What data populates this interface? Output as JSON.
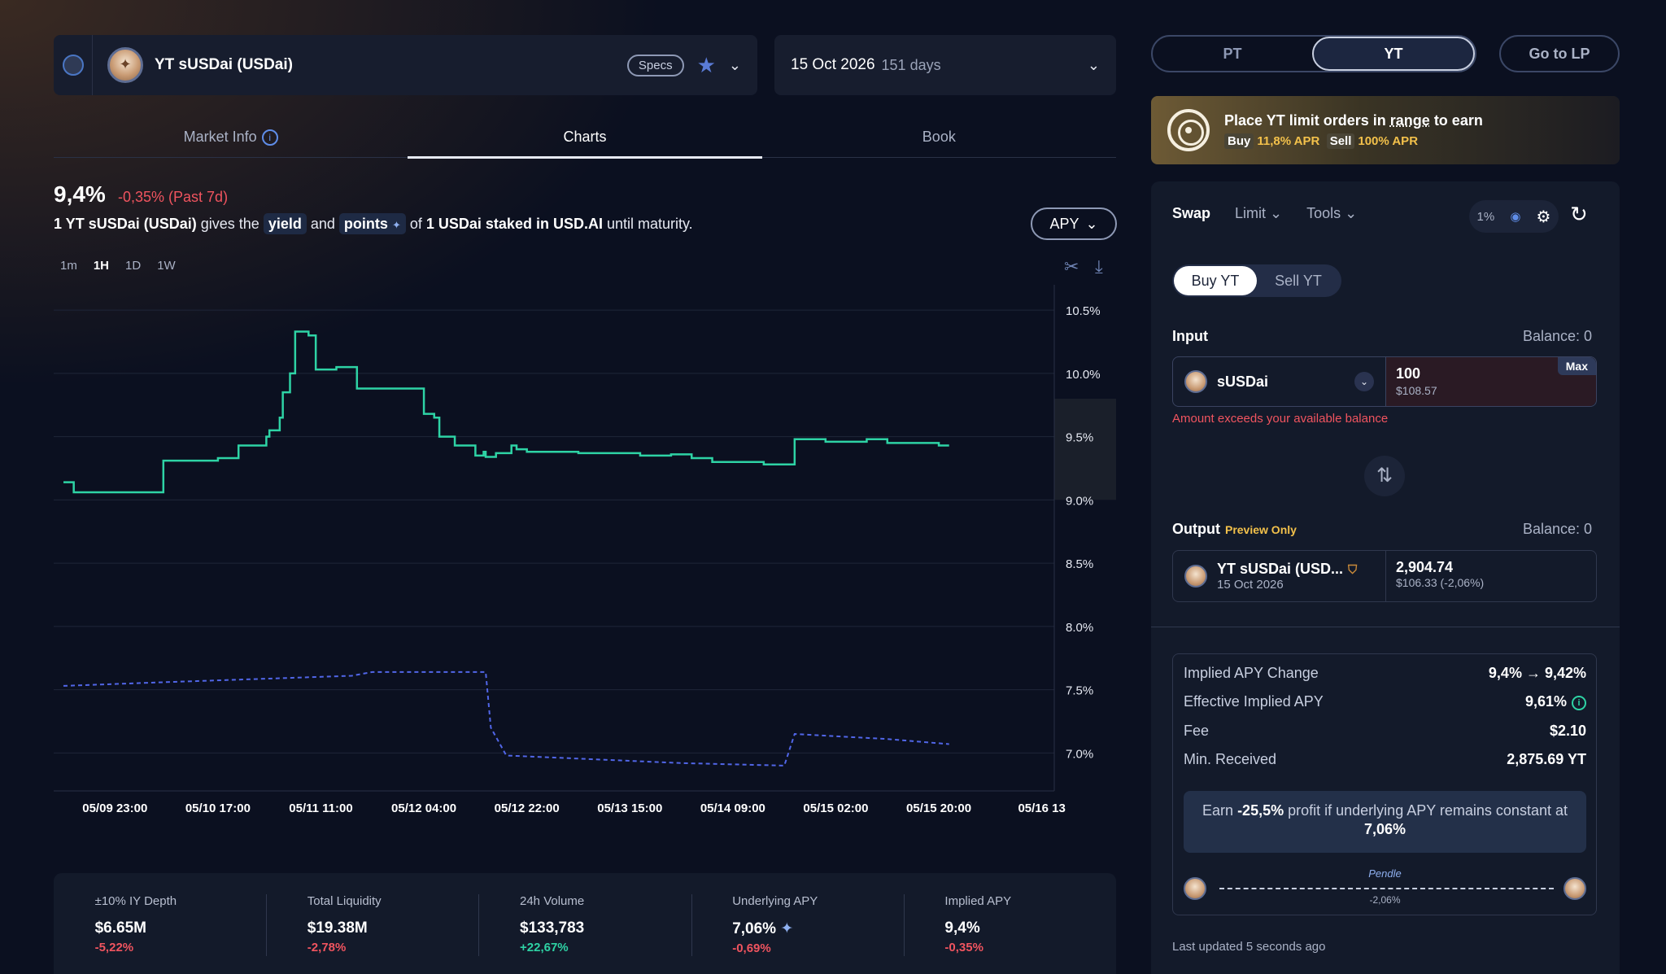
{
  "market": {
    "name": "YT sUSDai (USDai)",
    "specs_label": "Specs",
    "maturity_date": "15 Oct 2026",
    "maturity_days": "151 days"
  },
  "tabs": [
    {
      "label": "Market Info"
    },
    {
      "label": "Charts"
    },
    {
      "label": "Book"
    }
  ],
  "chart_header": {
    "apy": "9,4%",
    "change": "-0,35% (Past 7d)",
    "desc_pre": "1 YT sUSDai (USDai)",
    "desc_gives": "gives the",
    "chip_yield": "yield",
    "desc_and": "and",
    "chip_points": "points",
    "desc_of": "of",
    "desc_bold2": "1 USDai staked in USD.AI",
    "desc_until": "until maturity.",
    "metric_select": "APY",
    "timeframes": [
      "1m",
      "1H",
      "1D",
      "1W"
    ]
  },
  "chart_data": {
    "type": "line",
    "x": [
      "05/09 23:00",
      "05/10 17:00",
      "05/11 11:00",
      "05/12 04:00",
      "05/12 22:00",
      "05/13 15:00",
      "05/14 09:00",
      "05/15 02:00",
      "05/15 20:00",
      "05/16 13"
    ],
    "ylim": [
      6.7,
      10.7
    ],
    "yticks": [
      "10.5%",
      "10.0%",
      "9.5%",
      "9.0%",
      "8.5%",
      "8.0%",
      "7.5%",
      "7.0%"
    ],
    "ytick_values": [
      10.5,
      10.0,
      9.5,
      9.0,
      8.5,
      8.0,
      7.5,
      7.0
    ],
    "series": [
      {
        "style": "solid-step",
        "color": "#2ed3a5",
        "points": [
          [
            0,
            9.14
          ],
          [
            0.1,
            9.06
          ],
          [
            0.3,
            9.06
          ],
          [
            0.9,
            9.06
          ],
          [
            0.97,
            9.31
          ],
          [
            1.5,
            9.33
          ],
          [
            1.7,
            9.43
          ],
          [
            1.75,
            9.43
          ],
          [
            1.97,
            9.5
          ],
          [
            2.0,
            9.55
          ],
          [
            2.1,
            9.65
          ],
          [
            2.13,
            9.85
          ],
          [
            2.2,
            10.0
          ],
          [
            2.25,
            10.33
          ],
          [
            2.38,
            10.3
          ],
          [
            2.45,
            10.03
          ],
          [
            2.65,
            10.05
          ],
          [
            2.85,
            9.88
          ],
          [
            3.35,
            9.88
          ],
          [
            3.5,
            9.68
          ],
          [
            3.6,
            9.65
          ],
          [
            3.65,
            9.5
          ],
          [
            3.8,
            9.43
          ],
          [
            4.0,
            9.35
          ],
          [
            4.08,
            9.38
          ],
          [
            4.1,
            9.34
          ],
          [
            4.2,
            9.37
          ],
          [
            4.35,
            9.43
          ],
          [
            4.4,
            9.4
          ],
          [
            4.5,
            9.38
          ],
          [
            5.0,
            9.37
          ],
          [
            5.5,
            9.37
          ],
          [
            5.6,
            9.35
          ],
          [
            5.9,
            9.36
          ],
          [
            6.1,
            9.33
          ],
          [
            6.3,
            9.3
          ],
          [
            6.5,
            9.3
          ],
          [
            6.8,
            9.28
          ],
          [
            7.0,
            9.28
          ],
          [
            7.1,
            9.48
          ],
          [
            7.2,
            9.48
          ],
          [
            7.4,
            9.46
          ],
          [
            7.6,
            9.46
          ],
          [
            7.8,
            9.48
          ],
          [
            8.0,
            9.45
          ],
          [
            8.5,
            9.43
          ],
          [
            8.6,
            9.43
          ]
        ]
      },
      {
        "style": "dashed",
        "color": "#5166e8",
        "points": [
          [
            0,
            7.53
          ],
          [
            1.0,
            7.56
          ],
          [
            2.8,
            7.61
          ],
          [
            3.0,
            7.64
          ],
          [
            4.1,
            7.64
          ],
          [
            4.15,
            7.2
          ],
          [
            4.3,
            6.98
          ],
          [
            6.0,
            6.92
          ],
          [
            7.0,
            6.9
          ],
          [
            7.1,
            7.15
          ],
          [
            8.0,
            7.11
          ],
          [
            8.6,
            7.07
          ]
        ]
      }
    ]
  },
  "stats": [
    {
      "label": "±10% IY Depth",
      "value": "$6.65M",
      "change": "-5,22%",
      "dir": "neg"
    },
    {
      "label": "Total Liquidity",
      "value": "$19.38M",
      "change": "-2,78%",
      "dir": "neg"
    },
    {
      "label": "24h Volume",
      "value": "$133,783",
      "change": "+22,67%",
      "dir": "pos"
    },
    {
      "label": "Underlying APY",
      "value": "7,06%",
      "change": "-0,69%",
      "dir": "neg"
    },
    {
      "label": "Implied APY",
      "value": "9,4%",
      "change": "-0,35%",
      "dir": "neg"
    }
  ],
  "right": {
    "seg_pt": "PT",
    "seg_yt": "YT",
    "go_lp": "Go to LP",
    "promo_title_a": "Place YT limit orders in",
    "promo_title_range": "range",
    "promo_title_b": "to earn",
    "promo_buy_tag": "Buy",
    "promo_buy_apr": "11,8% APR",
    "promo_sell_tag": "Sell",
    "promo_sell_apr": "100% APR",
    "swap": "Swap",
    "limit": "Limit",
    "tools": "Tools",
    "slippage": "1%",
    "buy_yt": "Buy YT",
    "sell_yt": "Sell YT",
    "input_label": "Input",
    "input_balance": "Balance: 0",
    "input_token": "sUSDai",
    "input_amount": "100",
    "input_usd": "$108.57",
    "max_label": "Max",
    "error": "Amount exceeds your available balance",
    "output_label": "Output",
    "preview": "Preview Only",
    "output_balance": "Balance: 0",
    "output_token": "YT sUSDai (USD...",
    "output_date": "15 Oct 2026",
    "output_amount": "2,904.74",
    "output_usd": "$106.33 (-2,06%)",
    "details": [
      {
        "label": "Implied APY Change",
        "value": "9,4% → 9,42%"
      },
      {
        "label": "Effective Implied APY",
        "value": "9,61%"
      },
      {
        "label": "Fee",
        "value": "$2.10"
      },
      {
        "label": "Min. Received",
        "value": "2,875.69 YT"
      }
    ],
    "earn_pre": "Earn",
    "earn_pct": "-25,5%",
    "earn_mid": "profit if underlying APY remains constant at",
    "earn_apy": "7,06%",
    "pendle_label": "Pendle",
    "pendle_pct": "-2,06%",
    "last_updated": "Last updated 5 seconds ago"
  },
  "colors": {
    "accent_green": "#2ed3a5",
    "accent_blue": "#5166e8",
    "negative": "#f0545f",
    "gold": "#f3c14b"
  }
}
